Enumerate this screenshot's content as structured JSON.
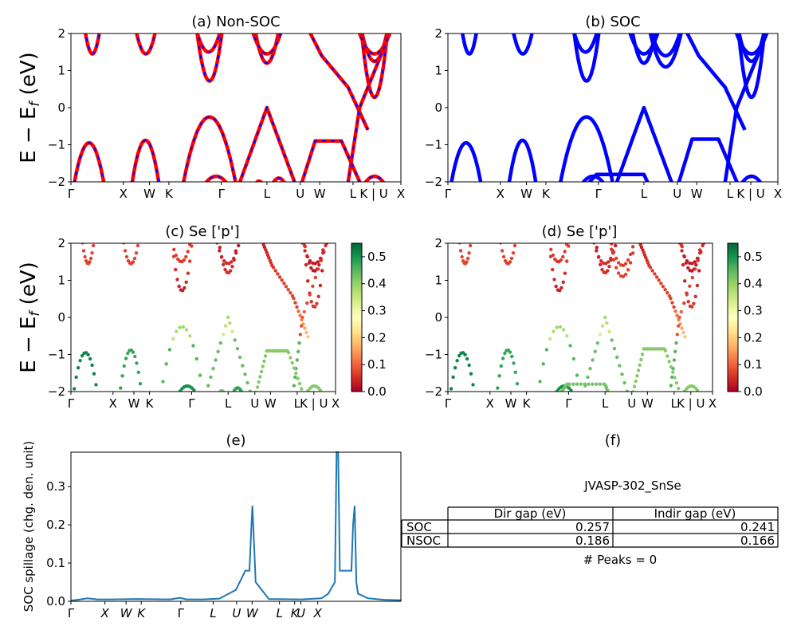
{
  "figure": {
    "band_ylabel": "E − E",
    "band_ylabel_sub": "f",
    "band_ylabel_unit": " (eV)",
    "spillage_ylabel": "SOC spillage (chg. den. unit)"
  },
  "chart_data": [
    {
      "id": "a",
      "type": "line",
      "title": "(a) Non-SOC",
      "ylim": [
        -2,
        2
      ],
      "yticks": [
        "2",
        "1",
        "0",
        "−1",
        "−2"
      ],
      "xticks": [
        "Γ",
        "X",
        "W",
        "K",
        "Γ",
        "L",
        "U",
        "W",
        "L",
        "K | U",
        "X"
      ],
      "series": [
        {
          "name": "Non-SOC",
          "color": "#ff0000",
          "dash_color": "#0000ff"
        }
      ]
    },
    {
      "id": "b",
      "type": "line",
      "title": "(b) SOC",
      "ylim": [
        -2,
        2
      ],
      "yticks": [
        "2",
        "1",
        "0",
        "−1",
        "−2"
      ],
      "xticks": [
        "Γ",
        "X",
        "W",
        "K",
        "Γ",
        "L",
        "U",
        "W",
        "L",
        "K | U",
        "X"
      ],
      "series": [
        {
          "name": "SOC",
          "color": "#0000ff"
        }
      ]
    },
    {
      "id": "c",
      "type": "scatter",
      "title": "(c)  Se ['p']",
      "ylim": [
        -2,
        2
      ],
      "yticks": [
        "2",
        "1",
        "0",
        "−1",
        "−2"
      ],
      "xticks": [
        "Γ",
        "X",
        "W",
        "K",
        "Γ",
        "L",
        "U",
        "W",
        "L",
        "K | U",
        "X"
      ],
      "colorbar": {
        "range": [
          0.0,
          0.55
        ],
        "ticks": [
          "0.5",
          "0.4",
          "0.3",
          "0.2",
          "0.1",
          "0.0"
        ],
        "colormap": "RdYlGn"
      }
    },
    {
      "id": "d",
      "type": "scatter",
      "title": "(d) Se ['p']",
      "ylim": [
        -2,
        2
      ],
      "yticks": [
        "2",
        "1",
        "0",
        "−1",
        "−2"
      ],
      "xticks": [
        "Γ",
        "X",
        "W",
        "K",
        "Γ",
        "L",
        "U",
        "W",
        "L",
        "K | U",
        "X"
      ],
      "colorbar": {
        "range": [
          0.0,
          0.55
        ],
        "ticks": [
          "0.5",
          "0.4",
          "0.3",
          "0.2",
          "0.1",
          "0.0"
        ],
        "colormap": "RdYlGn"
      }
    },
    {
      "id": "e",
      "type": "line",
      "title": "(e)",
      "ylabel": "SOC spillage (chg. den. unit)",
      "ylim": [
        0,
        0.39
      ],
      "yticks": [
        "0.3",
        "0.2",
        "0.1",
        "0.0"
      ],
      "xticks": [
        "Γ",
        "X",
        "W",
        "K",
        "Γ",
        "L",
        "U",
        "W",
        "L",
        "K",
        "U",
        "X"
      ],
      "series": [
        {
          "name": "spillage",
          "color": "#1f77b4",
          "x": [
            0,
            0.02,
            0.05,
            0.08,
            0.12,
            0.2,
            0.3,
            0.33,
            0.35,
            0.4,
            0.45,
            0.5,
            0.52,
            0.5285,
            0.5315,
            0.535,
            0.541,
            0.547,
            0.55,
            0.56,
            0.6,
            0.7,
            0.76,
            0.78,
            0.8,
            0.805,
            0.81,
            0.815,
            0.83,
            0.85,
            0.855,
            0.86,
            0.865,
            0.87,
            0.9,
            0.95,
            1.0
          ],
          "values": [
            0.002,
            0.004,
            0.008,
            0.005,
            0.005,
            0.006,
            0.005,
            0.009,
            0.005,
            0.005,
            0.007,
            0.03,
            0.065,
            0.08,
            0.08,
            0.08,
            0.08,
            0.2,
            0.25,
            0.05,
            0.006,
            0.005,
            0.008,
            0.02,
            0.05,
            0.39,
            0.39,
            0.08,
            0.08,
            0.08,
            0.2,
            0.25,
            0.05,
            0.02,
            0.008,
            0.004,
            0.003
          ]
        }
      ]
    },
    {
      "id": "f",
      "type": "table",
      "title": "(f)",
      "caption": "JVASP-302_SnSe",
      "columns": [
        "Dir gap (eV)",
        "Indir gap (eV)"
      ],
      "rows": [
        {
          "label": "SOC",
          "dir": "0.257",
          "indir": "0.241"
        },
        {
          "label": "NSOC",
          "dir": "0.186",
          "indir": "0.166"
        }
      ],
      "footer": "# Peaks = 0"
    }
  ]
}
